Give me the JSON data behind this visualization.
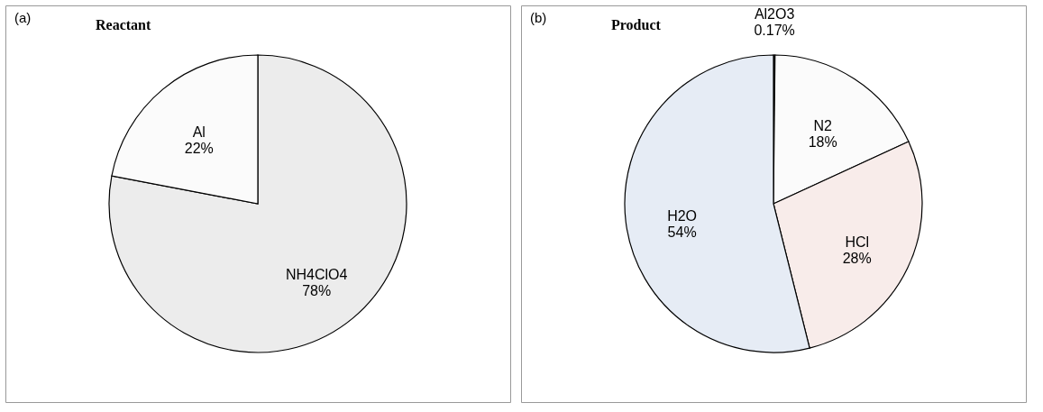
{
  "chart_data": [
    {
      "type": "pie",
      "title": "Reactant",
      "annotations": [
        "(a)"
      ],
      "categories": [
        "NH4ClO4",
        "Al"
      ],
      "values": [
        78,
        22
      ],
      "value_labels": [
        "78%",
        "22%"
      ],
      "colors": [
        "#ececec",
        "#fbfbfb"
      ]
    },
    {
      "type": "pie",
      "title": "Product",
      "annotations": [
        "(b)"
      ],
      "categories": [
        "Al2O3",
        "N2",
        "HCl",
        "H2O"
      ],
      "values": [
        0.17,
        18,
        28,
        54
      ],
      "value_labels": [
        "0.17%",
        "18%",
        "28%",
        "54%"
      ],
      "colors": [
        "#000000",
        "#fbfbfb",
        "#f8ecea",
        "#e6ecf5"
      ]
    }
  ]
}
